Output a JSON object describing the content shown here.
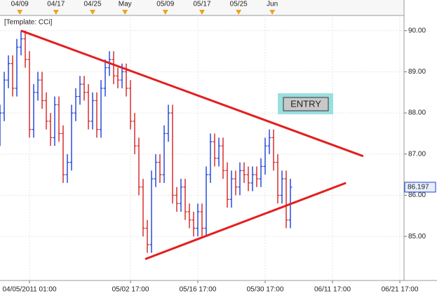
{
  "chart_data": {
    "type": "ohlc",
    "template_label": "[Template: CCi]",
    "annotation": "ENTRY",
    "up_color": "#1a3fd6",
    "down_color": "#d42020",
    "grid": true,
    "x": [
      0,
      1,
      2,
      3,
      4,
      5,
      6,
      7,
      8,
      9,
      10,
      11,
      12,
      13,
      14,
      15,
      16,
      17,
      18,
      19,
      20,
      21,
      22,
      23,
      24,
      25,
      26,
      27,
      28,
      29,
      30,
      31,
      32,
      33,
      34,
      35,
      36,
      37,
      38,
      39,
      40,
      41,
      42,
      43,
      44,
      45,
      46,
      47,
      48,
      49,
      50,
      51,
      52,
      53,
      54,
      55,
      56,
      57,
      58,
      59,
      60,
      61,
      62,
      63,
      64,
      65,
      66,
      67,
      68,
      69
    ],
    "open": [
      87.4,
      88.0,
      88.8,
      89.2,
      88.6,
      89.6,
      89.8,
      89.3,
      87.6,
      88.5,
      88.8,
      88.3,
      87.8,
      87.4,
      88.2,
      87.5,
      86.5,
      86.8,
      88.0,
      88.4,
      88.7,
      88.5,
      87.8,
      88.3,
      87.6,
      88.6,
      89.1,
      89.3,
      88.9,
      88.8,
      89.0,
      88.6,
      87.8,
      87.2,
      86.2,
      85.2,
      84.8,
      86.4,
      86.8,
      86.5,
      87.5,
      88.0,
      86.0,
      85.8,
      86.2,
      85.6,
      85.4,
      85.2,
      85.6,
      85.2,
      86.5,
      87.3,
      86.9,
      87.2,
      86.6,
      85.9,
      86.4,
      86.2,
      86.6,
      86.5,
      86.3,
      86.5,
      86.4,
      86.7,
      87.2,
      87.4,
      86.8,
      86.0,
      86.4,
      85.4
    ],
    "high": [
      88.2,
      89.0,
      89.4,
      89.4,
      89.8,
      90.0,
      90.0,
      89.5,
      88.7,
      89.0,
      89.0,
      88.5,
      88.0,
      88.4,
      88.4,
      87.7,
      87.0,
      88.2,
      88.6,
      88.9,
      88.9,
      88.7,
      88.5,
      88.5,
      88.8,
      89.3,
      89.5,
      89.5,
      89.1,
      89.2,
      89.2,
      88.8,
      88.0,
      87.4,
      86.4,
      85.4,
      86.6,
      87.0,
      87.0,
      87.7,
      88.2,
      88.2,
      86.2,
      86.4,
      86.4,
      85.8,
      85.6,
      85.8,
      85.8,
      86.7,
      87.5,
      87.5,
      87.4,
      87.4,
      86.8,
      86.6,
      86.6,
      86.8,
      86.8,
      86.7,
      86.7,
      86.7,
      86.9,
      87.4,
      87.6,
      87.6,
      87.0,
      86.6,
      86.6,
      86.4
    ],
    "low": [
      87.2,
      87.8,
      88.6,
      88.4,
      88.4,
      89.4,
      89.1,
      87.4,
      87.4,
      88.3,
      88.1,
      87.6,
      87.2,
      87.2,
      87.3,
      86.3,
      86.3,
      86.6,
      87.8,
      88.2,
      88.3,
      87.6,
      87.6,
      87.4,
      87.4,
      88.4,
      88.9,
      88.7,
      88.6,
      88.6,
      88.4,
      87.6,
      87.0,
      86.0,
      85.0,
      84.6,
      84.6,
      86.2,
      86.3,
      86.3,
      87.3,
      85.8,
      85.6,
      85.6,
      85.4,
      85.2,
      85.0,
      85.0,
      85.0,
      85.0,
      86.3,
      86.7,
      86.7,
      86.4,
      85.7,
      85.7,
      86.0,
      86.0,
      86.3,
      86.1,
      86.1,
      86.2,
      86.2,
      86.5,
      87.0,
      86.6,
      85.8,
      85.8,
      85.2,
      85.2
    ],
    "close": [
      88.0,
      88.8,
      89.2,
      88.6,
      89.6,
      89.8,
      89.3,
      87.6,
      88.5,
      88.8,
      88.3,
      87.8,
      87.4,
      88.2,
      87.5,
      86.5,
      86.8,
      88.0,
      88.4,
      88.7,
      88.5,
      87.8,
      88.3,
      87.6,
      88.6,
      89.1,
      89.3,
      88.9,
      88.8,
      89.0,
      88.6,
      87.8,
      87.2,
      86.2,
      85.2,
      84.8,
      86.4,
      86.8,
      86.5,
      87.5,
      88.0,
      86.0,
      85.8,
      86.2,
      85.6,
      85.4,
      85.2,
      85.6,
      85.2,
      86.5,
      87.3,
      86.9,
      87.2,
      86.6,
      85.9,
      86.4,
      86.2,
      86.6,
      86.5,
      86.3,
      86.5,
      86.4,
      86.7,
      87.2,
      87.4,
      86.8,
      86.0,
      86.4,
      85.4,
      86.197
    ],
    "trend_lines": [
      {
        "color": "#e41e1e",
        "x": [
          5,
          86.3
        ],
        "y": [
          90.0,
          86.95
        ]
      },
      {
        "color": "#e41e1e",
        "x": [
          34.5,
          82.2
        ],
        "y": [
          84.45,
          86.3
        ]
      }
    ],
    "xlim": [
      0,
      96
    ],
    "ylim": [
      83.93,
      90.37
    ],
    "yticks": [
      {
        "value": 85,
        "label": "85.00"
      },
      {
        "value": 86,
        "label": "86.00"
      },
      {
        "value": 87,
        "label": "87.00"
      },
      {
        "value": 88,
        "label": "88.00"
      },
      {
        "value": 89,
        "label": "89.00"
      },
      {
        "value": 90,
        "label": "90.00"
      }
    ],
    "xticks": [
      {
        "value": 7,
        "label": "04/05/2011 01:00"
      },
      {
        "value": 31,
        "label": "05/02 17:00"
      },
      {
        "value": 47,
        "label": "05/16 17:00"
      },
      {
        "value": 63,
        "label": "05/30 17:00"
      },
      {
        "value": 79,
        "label": "06/11 17:00"
      },
      {
        "value": 95,
        "label": "06/21 17:00"
      }
    ],
    "xticks_top": [
      {
        "value": 4.7,
        "label": "04/09"
      },
      {
        "value": 13.3,
        "label": "04/17"
      },
      {
        "value": 22,
        "label": "04/25"
      },
      {
        "value": 29.7,
        "label": "May"
      },
      {
        "value": 39.3,
        "label": "05/09"
      },
      {
        "value": 48,
        "label": "05/17"
      },
      {
        "value": 56.7,
        "label": "05/25"
      },
      {
        "value": 64.7,
        "label": "Jun"
      }
    ]
  }
}
